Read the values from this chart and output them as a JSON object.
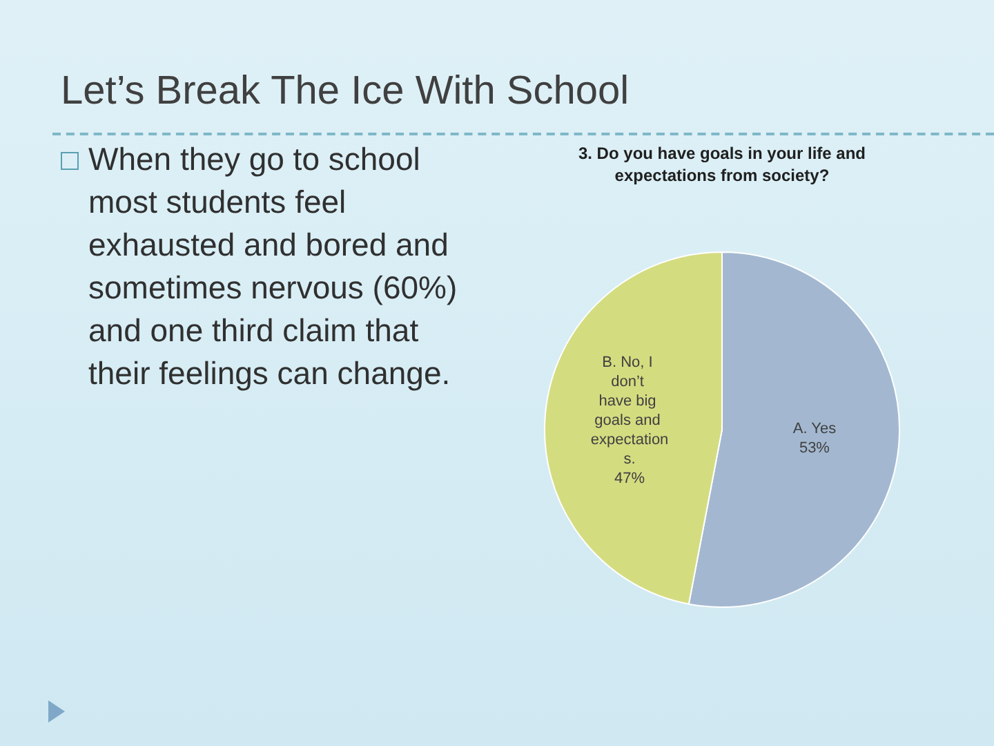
{
  "chart_data": {
    "type": "pie",
    "title": "Let’s Break The Ice With School",
    "subtitle": "3. Do you have goals in your life and expectations from society?",
    "annotations": [
      "When they go to school most students feel exhausted and bored and sometimes nervous (60%) and one third claim that their feelings can change."
    ],
    "categories": [
      "A. Yes",
      "B. No, I don’t have big goals and expectations."
    ],
    "values": [
      53,
      47
    ],
    "colors": [
      "#a3b8d0",
      "#d4dc80"
    ],
    "value_labels": [
      "53%",
      "47%"
    ],
    "legend": false
  }
}
